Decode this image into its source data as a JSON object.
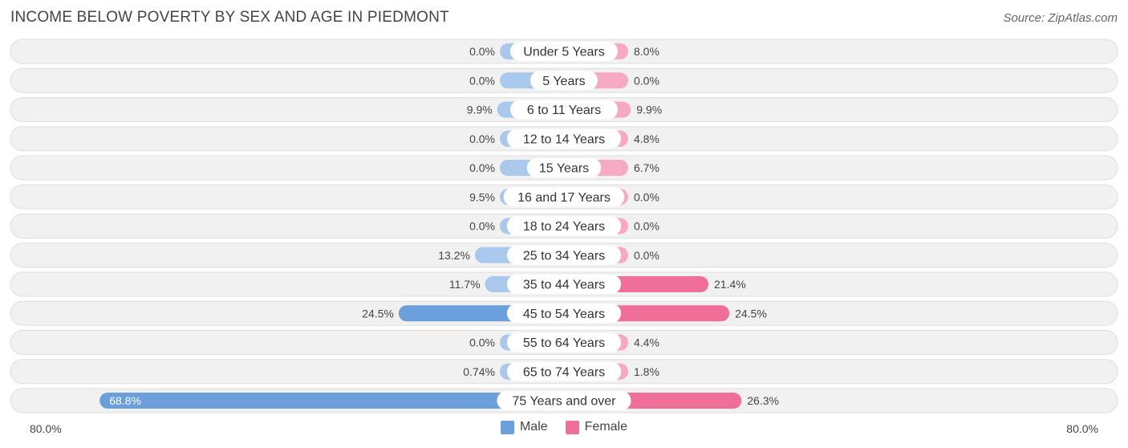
{
  "title": "INCOME BELOW POVERTY BY SEX AND AGE IN PIEDMONT",
  "source": "Source: ZipAtlas.com",
  "colors": {
    "male": "#6a9fdc",
    "male_light": "#a9c8ec",
    "female": "#f06f98",
    "female_light": "#f6a9c2"
  },
  "legend": {
    "male": "Male",
    "female": "Female"
  },
  "axis": {
    "left_label": "80.0%",
    "right_label": "80.0%"
  },
  "chart_data": {
    "type": "bar",
    "orientation": "horizontal-diverging",
    "title": "INCOME BELOW POVERTY BY SEX AND AGE IN PIEDMONT",
    "xlim": [
      -80,
      80
    ],
    "categories": [
      "Under 5 Years",
      "5 Years",
      "6 to 11 Years",
      "12 to 14 Years",
      "15 Years",
      "16 and 17 Years",
      "18 to 24 Years",
      "25 to 34 Years",
      "35 to 44 Years",
      "45 to 54 Years",
      "55 to 64 Years",
      "65 to 74 Years",
      "75 Years and over"
    ],
    "series": [
      {
        "name": "Male",
        "values": [
          0.0,
          0.0,
          9.9,
          0.0,
          0.0,
          9.5,
          0.0,
          13.2,
          11.7,
          24.5,
          0.0,
          0.74,
          68.8
        ],
        "labels": [
          "0.0%",
          "0.0%",
          "9.9%",
          "0.0%",
          "0.0%",
          "9.5%",
          "0.0%",
          "13.2%",
          "11.7%",
          "24.5%",
          "0.0%",
          "0.74%",
          "68.8%"
        ]
      },
      {
        "name": "Female",
        "values": [
          8.0,
          0.0,
          9.9,
          4.8,
          6.7,
          0.0,
          0.0,
          0.0,
          21.4,
          24.5,
          4.4,
          1.8,
          26.3
        ],
        "labels": [
          "8.0%",
          "0.0%",
          "9.9%",
          "4.8%",
          "6.7%",
          "0.0%",
          "0.0%",
          "0.0%",
          "21.4%",
          "24.5%",
          "4.4%",
          "1.8%",
          "26.3%"
        ]
      }
    ],
    "legend_position": "bottom-center"
  }
}
